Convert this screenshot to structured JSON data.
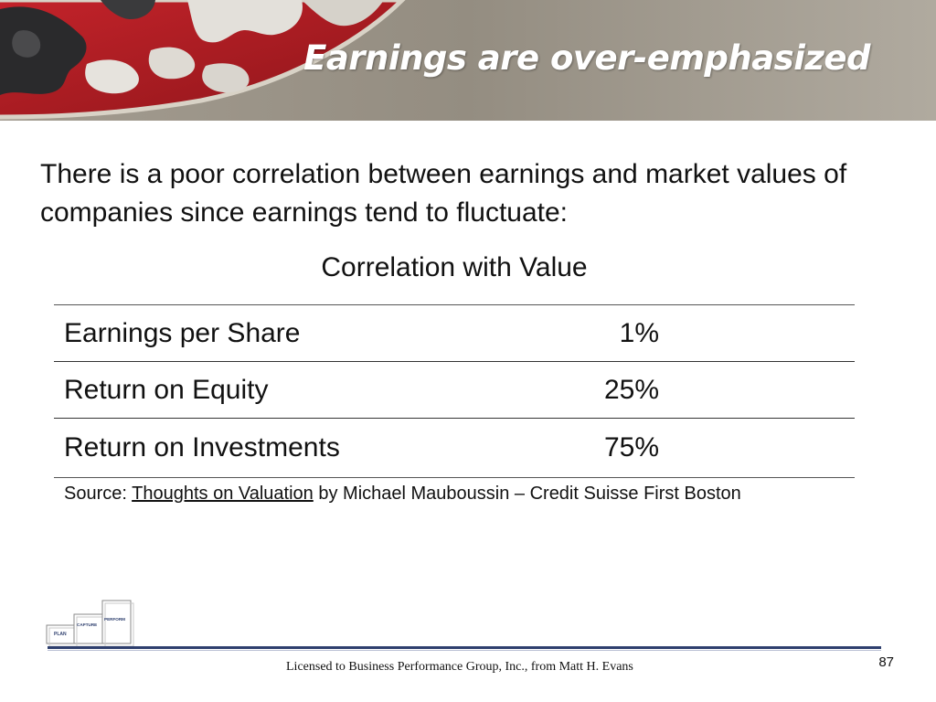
{
  "slide": {
    "title": "Earnings are over-emphasized",
    "intro": "There is a poor correlation between earnings and market values of companies since earnings tend to fluctuate:"
  },
  "table": {
    "caption": "Correlation with Value",
    "rows": [
      {
        "metric": "Earnings per Share",
        "value": "1%"
      },
      {
        "metric": "Return on Equity",
        "value": "25%"
      },
      {
        "metric": "Return on Investments",
        "value": "75%"
      }
    ]
  },
  "source": {
    "prefix": "Source: ",
    "book_title": "Thoughts on Valuation",
    "suffix": " by Michael Mauboussin – Credit Suisse First Boston"
  },
  "logo": {
    "steps": [
      "PLAN",
      "CAPTURE",
      "PERFORM"
    ]
  },
  "footer": {
    "license": "Licensed to Business Performance Group, Inc., from Matt H. Evans",
    "page_number": "87"
  },
  "colors": {
    "banner_gray": "#8f887c",
    "banner_red": "#b01c22",
    "footer_rule": "#2e3f6e"
  }
}
